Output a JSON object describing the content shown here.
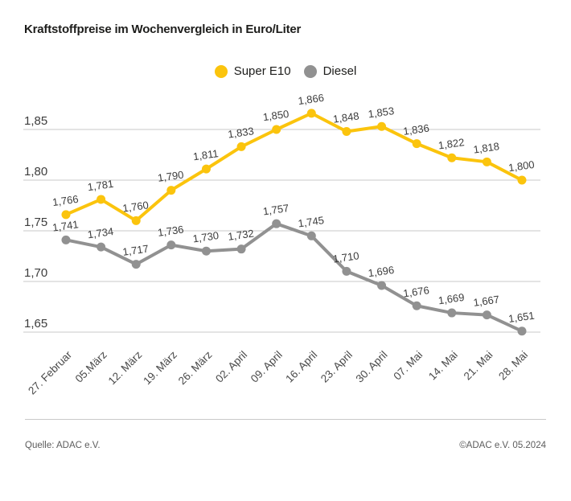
{
  "title": "Kraftstoffpreise im Wochenvergleich in Euro/Liter",
  "legend": {
    "items": [
      {
        "label": "Super E10",
        "color": "#FBC40D"
      },
      {
        "label": "Diesel",
        "color": "#919191"
      }
    ]
  },
  "footer": {
    "source": "Quelle: ADAC e.V.",
    "copyright": "©ADAC e.V. 05.2024"
  },
  "chart_data": {
    "type": "line",
    "title": "Kraftstoffpreise im Wochenvergleich in Euro/Liter",
    "xlabel": "",
    "ylabel": "Euro/Liter",
    "grid": true,
    "legend_position": "top-center",
    "grid_color": "#c9c9c9",
    "axis_color": "#3c3c3c",
    "label_color": "#3c3c3c",
    "ylim": [
      1.63,
      1.88
    ],
    "y_ticks": [
      "1,85",
      "1,80",
      "1,75",
      "1,70",
      "1,65"
    ],
    "y_tick_values": [
      1.85,
      1.8,
      1.75,
      1.7,
      1.65
    ],
    "categories": [
      "27. Februar",
      "05.März",
      "12. März",
      "19. März",
      "26. März",
      "02. April",
      "09. April",
      "16. April",
      "23. April",
      "30. April",
      "07. Mai",
      "14. Mai",
      "21. Mai",
      "28. Mai"
    ],
    "series": [
      {
        "name": "Super E10",
        "color": "#FBC40D",
        "values": [
          1.766,
          1.781,
          1.76,
          1.79,
          1.811,
          1.833,
          1.85,
          1.866,
          1.848,
          1.853,
          1.836,
          1.822,
          1.818,
          1.8
        ],
        "labels": [
          "1,766",
          "1,781",
          "1,760",
          "1,790",
          "1,811",
          "1,833",
          "1,850",
          "1,866",
          "1,848",
          "1,853",
          "1,836",
          "1,822",
          "1,818",
          "1,800"
        ]
      },
      {
        "name": "Diesel",
        "color": "#919191",
        "values": [
          1.741,
          1.734,
          1.717,
          1.736,
          1.73,
          1.732,
          1.757,
          1.745,
          1.71,
          1.696,
          1.676,
          1.669,
          1.667,
          1.651
        ],
        "labels": [
          "1,741",
          "1,734",
          "1,717",
          "1,736",
          "1,730",
          "1,732",
          "1,757",
          "1,745",
          "1,710",
          "1,696",
          "1,676",
          "1,669",
          "1,667",
          "1,651"
        ]
      }
    ]
  }
}
